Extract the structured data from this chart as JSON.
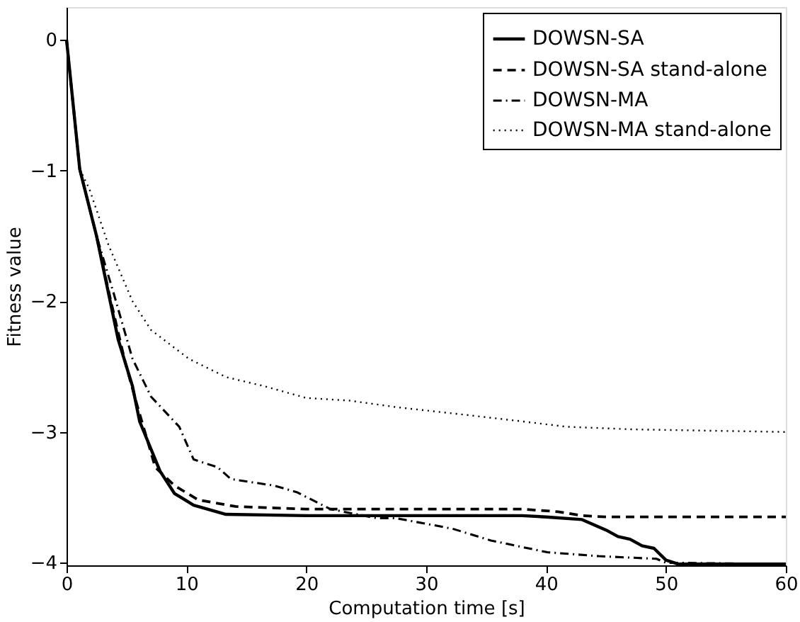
{
  "chart_data": {
    "type": "line",
    "xlabel": "Computation time [s]",
    "ylabel": "Fitness value",
    "xlim": [
      0,
      60
    ],
    "ylim": [
      -4.02,
      0.25
    ],
    "xticks": [
      0,
      10,
      20,
      30,
      40,
      50,
      60
    ],
    "yticks": [
      0,
      -1,
      -2,
      -3,
      -4
    ],
    "grid": false,
    "legend": "top right",
    "marker": "none",
    "series": [
      {
        "name": "DOWSN-SA",
        "color": "#000000",
        "line_style": "solid",
        "x": [
          0,
          1.1,
          2.5,
          4.3,
          5.5,
          6.1,
          7.8,
          9.0,
          10.6,
          13.3,
          20,
          38,
          40,
          43,
          45,
          46,
          47,
          48,
          49,
          50,
          51,
          60
        ],
        "values": [
          0,
          -0.99,
          -1.5,
          -2.29,
          -2.65,
          -2.92,
          -3.3,
          -3.47,
          -3.56,
          -3.63,
          -3.64,
          -3.64,
          -3.65,
          -3.67,
          -3.75,
          -3.8,
          -3.82,
          -3.87,
          -3.89,
          -3.98,
          -4.01,
          -4.01
        ]
      },
      {
        "name": "DOWSN-SA stand-alone",
        "color": "#000000",
        "line_style": "dashed",
        "x": [
          0,
          1.1,
          2.5,
          3.7,
          4.9,
          5.9,
          7.4,
          9.0,
          11,
          14.1,
          20,
          38,
          41,
          43,
          45,
          60
        ],
        "values": [
          0,
          -0.99,
          -1.5,
          -2.0,
          -2.47,
          -2.8,
          -3.27,
          -3.41,
          -3.52,
          -3.57,
          -3.59,
          -3.59,
          -3.61,
          -3.64,
          -3.65,
          -3.65
        ]
      },
      {
        "name": "DOWSN-MA",
        "color": "#000000",
        "line_style": "dashdot",
        "x": [
          0,
          1.1,
          2.5,
          3.9,
          5.5,
          7.05,
          9.4,
          10.6,
          12.6,
          13.7,
          17.3,
          19.2,
          22,
          25.9,
          27.5,
          32.2,
          35.4,
          40.1,
          44.4,
          49.2,
          50,
          60
        ],
        "values": [
          0,
          -0.99,
          -1.5,
          -1.93,
          -2.44,
          -2.73,
          -2.96,
          -3.21,
          -3.27,
          -3.36,
          -3.41,
          -3.46,
          -3.59,
          -3.66,
          -3.66,
          -3.74,
          -3.83,
          -3.92,
          -3.95,
          -3.97,
          -4.0,
          -4.01
        ]
      },
      {
        "name": "DOWSN-MA stand-alone",
        "color": "#000000",
        "line_style": "dotted",
        "x": [
          0,
          1.1,
          1.9,
          3.5,
          5.5,
          7.05,
          10.2,
          13.3,
          16.5,
          20,
          23.6,
          27.5,
          33.4,
          38.1,
          41.7,
          47.2,
          60
        ],
        "values": [
          0,
          -0.99,
          -1.14,
          -1.57,
          -2.0,
          -2.22,
          -2.44,
          -2.58,
          -2.65,
          -2.74,
          -2.76,
          -2.81,
          -2.87,
          -2.92,
          -2.96,
          -2.98,
          -3.0
        ]
      }
    ]
  }
}
